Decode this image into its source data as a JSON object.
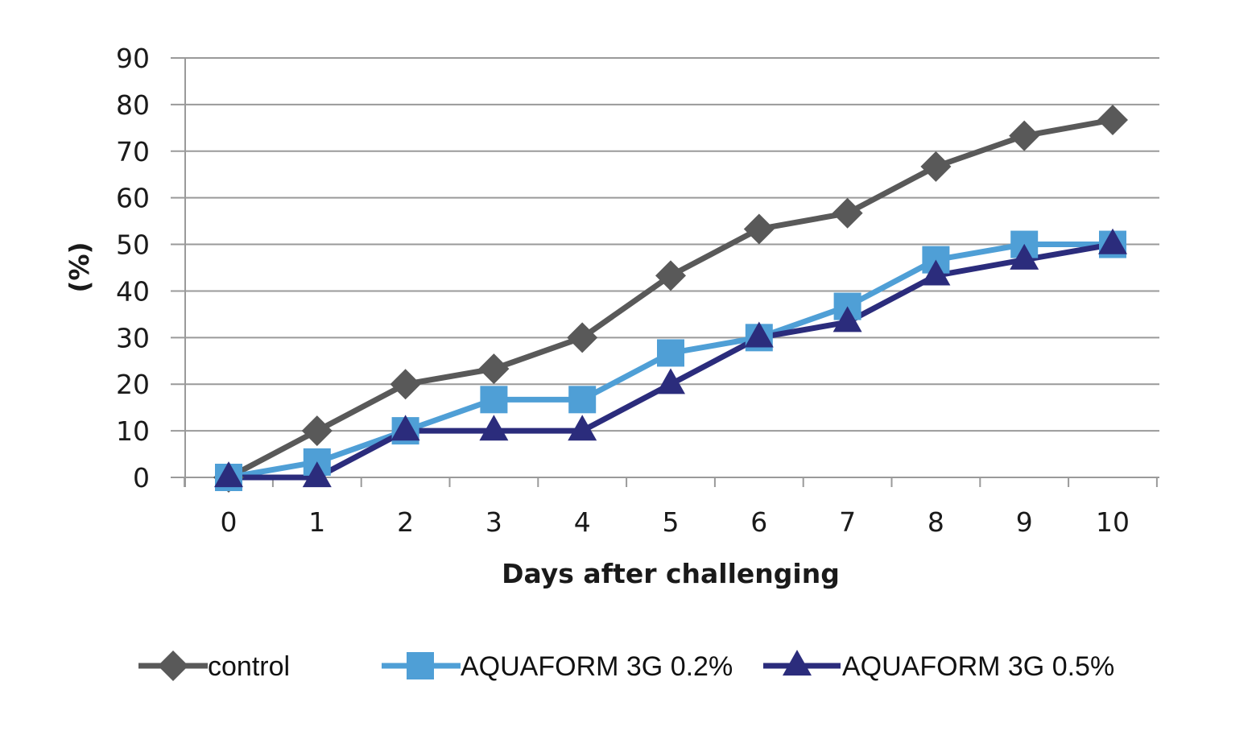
{
  "chart_data": {
    "type": "line",
    "xlabel": "Days after challenging",
    "ylabel": "(%)",
    "x": [
      0,
      1,
      2,
      3,
      4,
      5,
      6,
      7,
      8,
      9,
      10
    ],
    "x_tick_labels": [
      "0",
      "1",
      "2",
      "3",
      "4",
      "5",
      "6",
      "7",
      "8",
      "9",
      "10"
    ],
    "y_tick_labels": [
      "0",
      "10",
      "20",
      "30",
      "40",
      "50",
      "60",
      "70",
      "80",
      "90"
    ],
    "ylim": [
      0,
      90
    ],
    "grid": "horizontal",
    "legend_position": "bottom",
    "series": [
      {
        "name": "control",
        "marker": "diamond",
        "color": "#595959",
        "values": [
          0,
          10,
          20,
          23.3,
          30,
          43.3,
          53.3,
          56.7,
          66.7,
          73.3,
          76.7
        ]
      },
      {
        "name": "AQUAFORM 3G 0.2%",
        "marker": "square",
        "color": "#4f9fd6",
        "values": [
          0,
          3.3,
          10,
          16.7,
          16.7,
          26.7,
          30,
          36.7,
          46.7,
          50,
          50
        ]
      },
      {
        "name": "AQUAFORM 3G 0.5%",
        "marker": "triangle",
        "color": "#2b2c7c",
        "values": [
          0,
          0,
          10,
          10,
          10,
          20,
          30,
          33.3,
          43.3,
          46.7,
          50
        ]
      }
    ]
  },
  "colors": {
    "gridline": "#9a9a9a",
    "axis": "#9a9a9a",
    "text": "#1a1a1a"
  }
}
